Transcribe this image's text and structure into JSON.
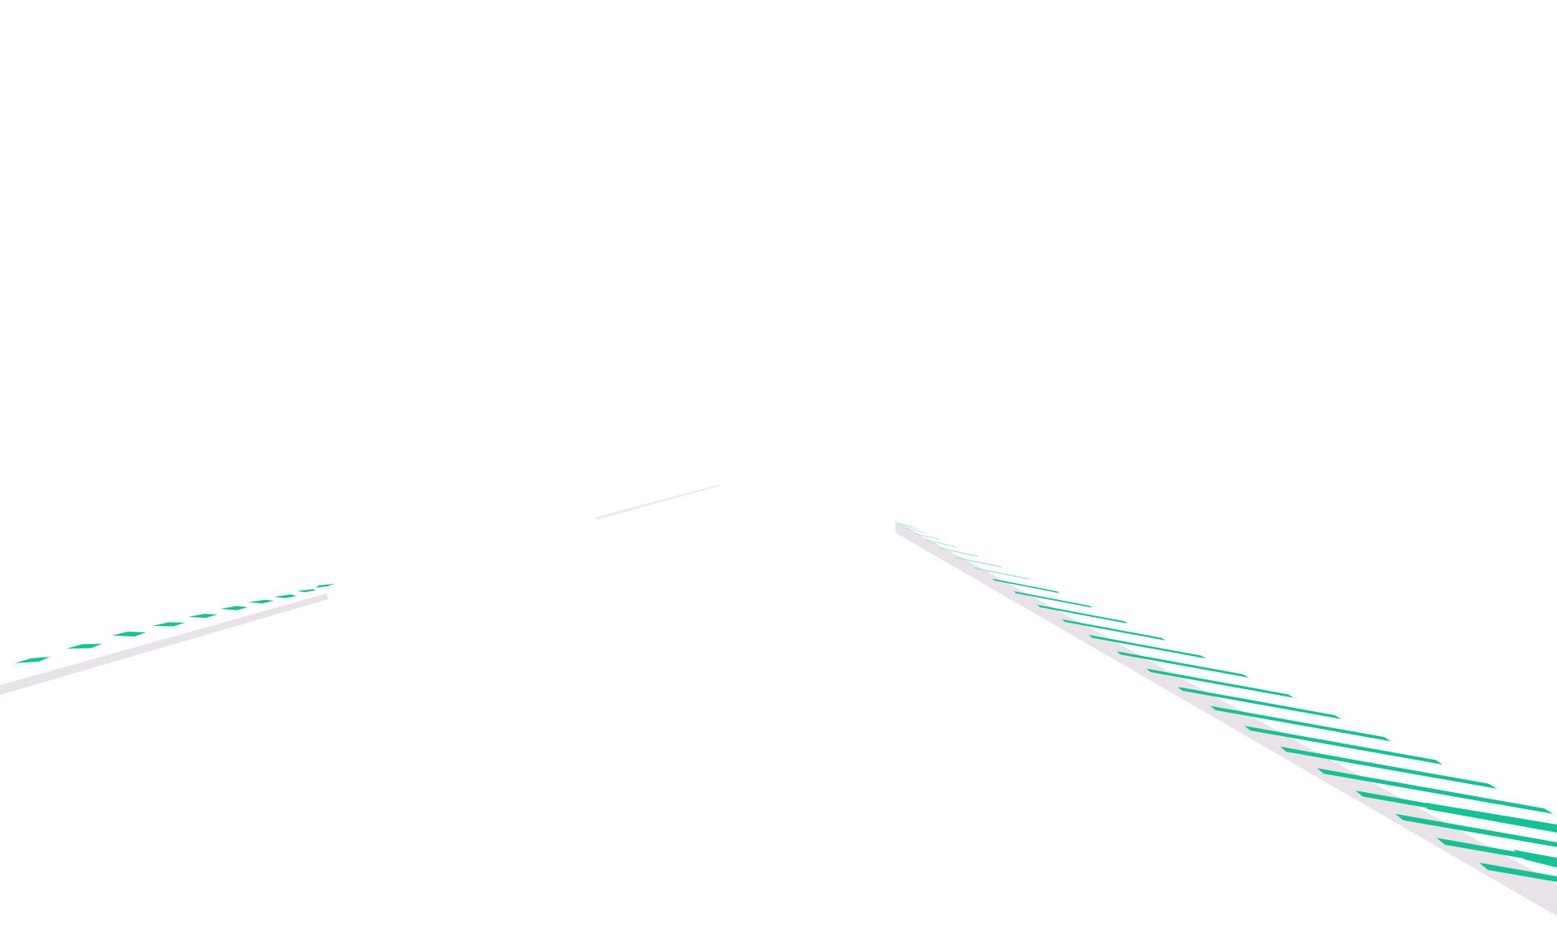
{
  "scene": {
    "background": "#ffffff",
    "colors": {
      "track_edge": "#e6e1e6",
      "track_edge_far": "#efebef",
      "stripe": "#16c194",
      "stripe_faint": "#9fe3d1"
    },
    "elements": [
      "left-track-segment",
      "left-track-stripes",
      "far-track-segment",
      "right-track-segment",
      "right-track-stripes"
    ]
  }
}
